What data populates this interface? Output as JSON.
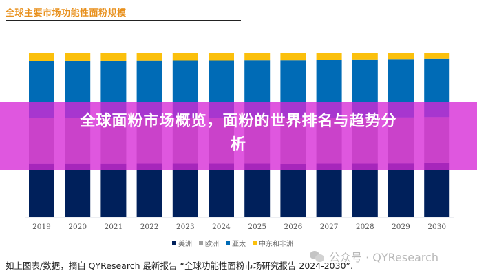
{
  "header": {
    "title": "全球主要市场功能性面粉规模"
  },
  "overlay": {
    "headline_line1": "全球面粉市场概览，面粉的世界排名与趋势分",
    "headline_line2": "析"
  },
  "footer": {
    "source_text": "如上图表/数据，摘自 QYResearch 最新报告 “全球功能性面粉市场研究报告 2024-2030”.",
    "watermark": "公众号 · QYResearch"
  },
  "colors": {
    "americas": "#00205b",
    "europe": "#9e9e9e",
    "apac": "#006bb6",
    "mea": "#fbc00c",
    "overlay": "#d628d6",
    "title": "#e8901c"
  },
  "chart_data": {
    "type": "bar",
    "stacked": true,
    "title": "全球主要市场功能性面粉规模",
    "xlabel": "",
    "ylabel": "",
    "ylim": [
      0,
      100
    ],
    "unit": "%",
    "grid": false,
    "legend_position": "bottom",
    "categories": [
      "2019",
      "2020",
      "2021",
      "2022",
      "2023",
      "2024",
      "2025",
      "2026",
      "2027",
      "2028",
      "2029",
      "2030"
    ],
    "series": [
      {
        "name": "美洲",
        "color": "#00205b",
        "values": [
          32.5,
          32.5,
          32.5,
          32.6,
          32.6,
          32.6,
          32.6,
          32.3,
          32.6,
          32.6,
          32.7,
          32.8
        ]
      },
      {
        "name": "欧洲",
        "color": "#9e9e9e",
        "values": [
          27.8,
          27.8,
          27.8,
          27.8,
          27.8,
          27.8,
          27.9,
          27.9,
          27.8,
          27.8,
          27.9,
          28.0
        ]
      },
      {
        "name": "亚太",
        "color": "#006bb6",
        "values": [
          35.0,
          35.1,
          35.1,
          35.1,
          35.2,
          35.2,
          35.2,
          35.5,
          35.4,
          35.5,
          35.5,
          35.5
        ]
      },
      {
        "name": "中东和非洲",
        "color": "#fbc00c",
        "values": [
          4.7,
          4.6,
          4.6,
          4.5,
          4.4,
          4.4,
          4.3,
          4.3,
          4.2,
          4.1,
          3.9,
          3.7
        ]
      }
    ]
  }
}
